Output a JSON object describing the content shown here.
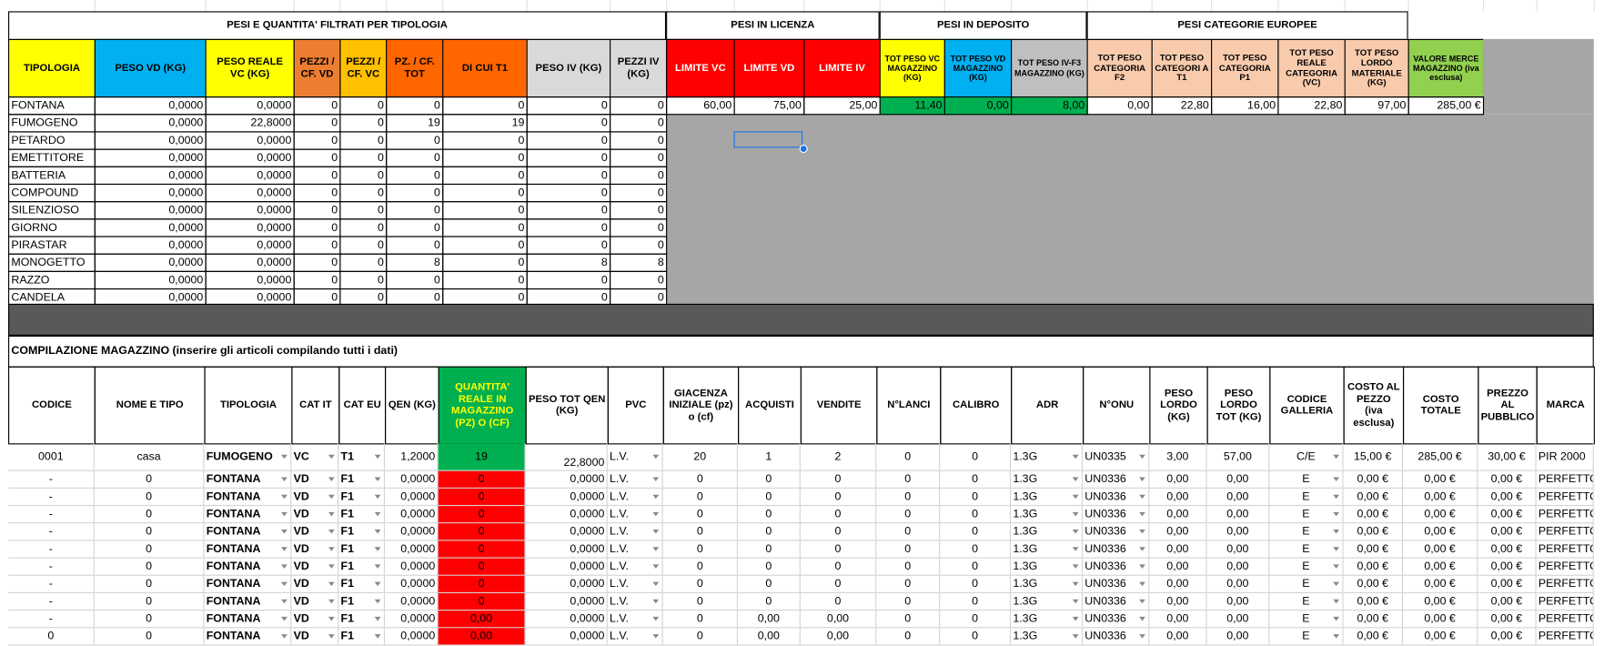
{
  "colors": {
    "yellow": "#ffff00",
    "blue": "#00b0f0",
    "orange1": "#ed7d31",
    "orange2": "#ffc000",
    "orange3": "#ff6600",
    "gray_hdr": "#d9d9d9",
    "red": "#ff0000",
    "green": "#00b050",
    "silver": "#bfbfbf",
    "peach": "#f8cbad",
    "lightgreen": "#92d050",
    "gray_area": "#a6a6a6",
    "dark_band": "#595959",
    "selection": "#1a73e8"
  },
  "summary": {
    "section_titles": [
      "PESI E QUANTITA' FILTRATI PER TIPOLOGIA",
      "PESI IN LICENZA",
      "PESI IN DEPOSITO",
      "PESI CATEGORIE EUROPEE"
    ],
    "headers": [
      "TIPOLOGIA",
      "PESO VD (KG)",
      "PESO REALE VC (KG)",
      "PEZZI / CF. VD",
      "PEZZI / CF. VC",
      "PZ. / CF. TOT",
      "DI CUI T1",
      "PESO IV (KG)",
      "PEZZI IV (KG)",
      "LIMITE VC",
      "LIMITE VD",
      "LIMITE IV",
      "TOT PESO VC MAGAZZINO (KG)",
      "TOT PESO VD MAGAZZINO (KG)",
      "TOT PESO IV-F3 MAGAZZINO (KG)",
      "TOT PESO CATEGORIA F2",
      "TOT PESO CATEGORI A T1",
      "TOT PESO CATEGORIA P1",
      "TOT PESO REALE CATEGORIA (VC)",
      "TOT PESO LORDO MATERIALE (KG)",
      "VALORE MERCE MAGAZZINO (iva esclusa)"
    ],
    "rows": [
      [
        "FONTANA",
        "0,0000",
        "0,0000",
        "0",
        "0",
        "0",
        "0",
        "0",
        "0"
      ],
      [
        "FUMOGENO",
        "0,0000",
        "22,8000",
        "0",
        "0",
        "19",
        "19",
        "0",
        "0"
      ],
      [
        "PETARDO",
        "0,0000",
        "0,0000",
        "0",
        "0",
        "0",
        "0",
        "0",
        "0"
      ],
      [
        "EMETTITORE",
        "0,0000",
        "0,0000",
        "0",
        "0",
        "0",
        "0",
        "0",
        "0"
      ],
      [
        "BATTERIA",
        "0,0000",
        "0,0000",
        "0",
        "0",
        "0",
        "0",
        "0",
        "0"
      ],
      [
        "COMPOUND",
        "0,0000",
        "0,0000",
        "0",
        "0",
        "0",
        "0",
        "0",
        "0"
      ],
      [
        "SILENZIOSO",
        "0,0000",
        "0,0000",
        "0",
        "0",
        "0",
        "0",
        "0",
        "0"
      ],
      [
        "GIORNO",
        "0,0000",
        "0,0000",
        "0",
        "0",
        "0",
        "0",
        "0",
        "0"
      ],
      [
        "PIRASTAR",
        "0,0000",
        "0,0000",
        "0",
        "0",
        "0",
        "0",
        "0",
        "0"
      ],
      [
        "MONOGETTO",
        "0,0000",
        "0,0000",
        "0",
        "0",
        "8",
        "0",
        "8",
        "8"
      ],
      [
        "RAZZO",
        "0,0000",
        "0,0000",
        "0",
        "0",
        "0",
        "0",
        "0",
        "0"
      ],
      [
        "CANDELA",
        "0,0000",
        "0,0000",
        "0",
        "0",
        "0",
        "0",
        "0",
        "0"
      ]
    ],
    "totals": [
      "60,00",
      "75,00",
      "25,00",
      "11,40",
      "0,00",
      "8,00",
      "0,00",
      "22,80",
      "16,00",
      "22,80",
      "97,00",
      "285,00 €"
    ]
  },
  "inventory": {
    "title": "COMPILAZIONE MAGAZZINO (inserire gli articoli compilando tutti i dati)",
    "headers": [
      "CODICE",
      "NOME E TIPO",
      "TIPOLOGIA",
      "CAT IT",
      "CAT EU",
      "QEN (KG)",
      "QUANTITA' REALE IN MAGAZZINO (PZ) O (CF)",
      "PESO TOT QEN (KG)",
      "PVC",
      "GIACENZA INIZIALE (pz) o (cf)",
      "ACQUISTI",
      "VENDITE",
      "N°LANCI",
      "CALIBRO",
      "ADR",
      "N°ONU",
      "PESO LORDO (KG)",
      "PESO LORDO TOT (KG)",
      "CODICE GALLERIA",
      "COSTO AL PEZZO (iva esclusa)",
      "COSTO TOTALE",
      "PREZZO AL PUBBLICO",
      "MARCA"
    ],
    "rows": [
      [
        "0001",
        "casa",
        "FUMOGENO",
        "VC",
        "T1",
        "1,2000",
        "19",
        "22,8000",
        "L.V.",
        "20",
        "1",
        "2",
        "0",
        "0",
        "1.3G",
        "UN0335",
        "3,00",
        "57,00",
        "C/E",
        "15,00 €",
        "285,00 €",
        "30,00 €",
        "PIR 2000"
      ],
      [
        "-",
        "0",
        "FONTANA",
        "VD",
        "F1",
        "0,0000",
        "0",
        "0,0000",
        "L.V.",
        "0",
        "0",
        "0",
        "0",
        "0",
        "1.3G",
        "UN0336",
        "0,00",
        "0,00",
        "E",
        "0,00 €",
        "0,00 €",
        "0,00 €",
        "PERFETTO"
      ],
      [
        "-",
        "0",
        "FONTANA",
        "VD",
        "F1",
        "0,0000",
        "0",
        "0,0000",
        "L.V.",
        "0",
        "0",
        "0",
        "0",
        "0",
        "1.3G",
        "UN0336",
        "0,00",
        "0,00",
        "E",
        "0,00 €",
        "0,00 €",
        "0,00 €",
        "PERFETTO"
      ],
      [
        "-",
        "0",
        "FONTANA",
        "VD",
        "F1",
        "0,0000",
        "0",
        "0,0000",
        "L.V.",
        "0",
        "0",
        "0",
        "0",
        "0",
        "1.3G",
        "UN0336",
        "0,00",
        "0,00",
        "E",
        "0,00 €",
        "0,00 €",
        "0,00 €",
        "PERFETTO"
      ],
      [
        "-",
        "0",
        "FONTANA",
        "VD",
        "F1",
        "0,0000",
        "0",
        "0,0000",
        "L.V.",
        "0",
        "0",
        "0",
        "0",
        "0",
        "1.3G",
        "UN0336",
        "0,00",
        "0,00",
        "E",
        "0,00 €",
        "0,00 €",
        "0,00 €",
        "PERFETTO"
      ],
      [
        "-",
        "0",
        "FONTANA",
        "VD",
        "F1",
        "0,0000",
        "0",
        "0,0000",
        "L.V.",
        "0",
        "0",
        "0",
        "0",
        "0",
        "1.3G",
        "UN0336",
        "0,00",
        "0,00",
        "E",
        "0,00 €",
        "0,00 €",
        "0,00 €",
        "PERFETTO"
      ],
      [
        "-",
        "0",
        "FONTANA",
        "VD",
        "F1",
        "0,0000",
        "0",
        "0,0000",
        "L.V.",
        "0",
        "0",
        "0",
        "0",
        "0",
        "1.3G",
        "UN0336",
        "0,00",
        "0,00",
        "E",
        "0,00 €",
        "0,00 €",
        "0,00 €",
        "PERFETTO"
      ],
      [
        "-",
        "0",
        "FONTANA",
        "VD",
        "F1",
        "0,0000",
        "0",
        "0,0000",
        "L.V.",
        "0",
        "0",
        "0",
        "0",
        "0",
        "1.3G",
        "UN0336",
        "0,00",
        "0,00",
        "E",
        "0,00 €",
        "0,00 €",
        "0,00 €",
        "PERFETTO"
      ],
      [
        "-",
        "0",
        "FONTANA",
        "VD",
        "F1",
        "0,0000",
        "0",
        "0,0000",
        "L.V.",
        "0",
        "0",
        "0",
        "0",
        "0",
        "1.3G",
        "UN0336",
        "0,00",
        "0,00",
        "E",
        "0,00 €",
        "0,00 €",
        "0,00 €",
        "PERFETTO"
      ],
      [
        "-",
        "0",
        "FONTANA",
        "VD",
        "F1",
        "0,0000",
        "0,00",
        "0,0000",
        "L.V.",
        "0",
        "0,00",
        "0,00",
        "0",
        "0",
        "1.3G",
        "UN0336",
        "0,00",
        "0,00",
        "E",
        "0,00 €",
        "0,00 €",
        "0,00 €",
        "PERFETTO"
      ],
      [
        "0",
        "0",
        "FONTANA",
        "VD",
        "F1",
        "0,0000",
        "0,00",
        "0,0000",
        "L.V.",
        "0",
        "0,00",
        "0,00",
        "0",
        "0",
        "1.3G",
        "UN0336",
        "0,00",
        "0,00",
        "E",
        "0,00 €",
        "0,00 €",
        "0,00 €",
        "PERFETTO"
      ]
    ]
  }
}
